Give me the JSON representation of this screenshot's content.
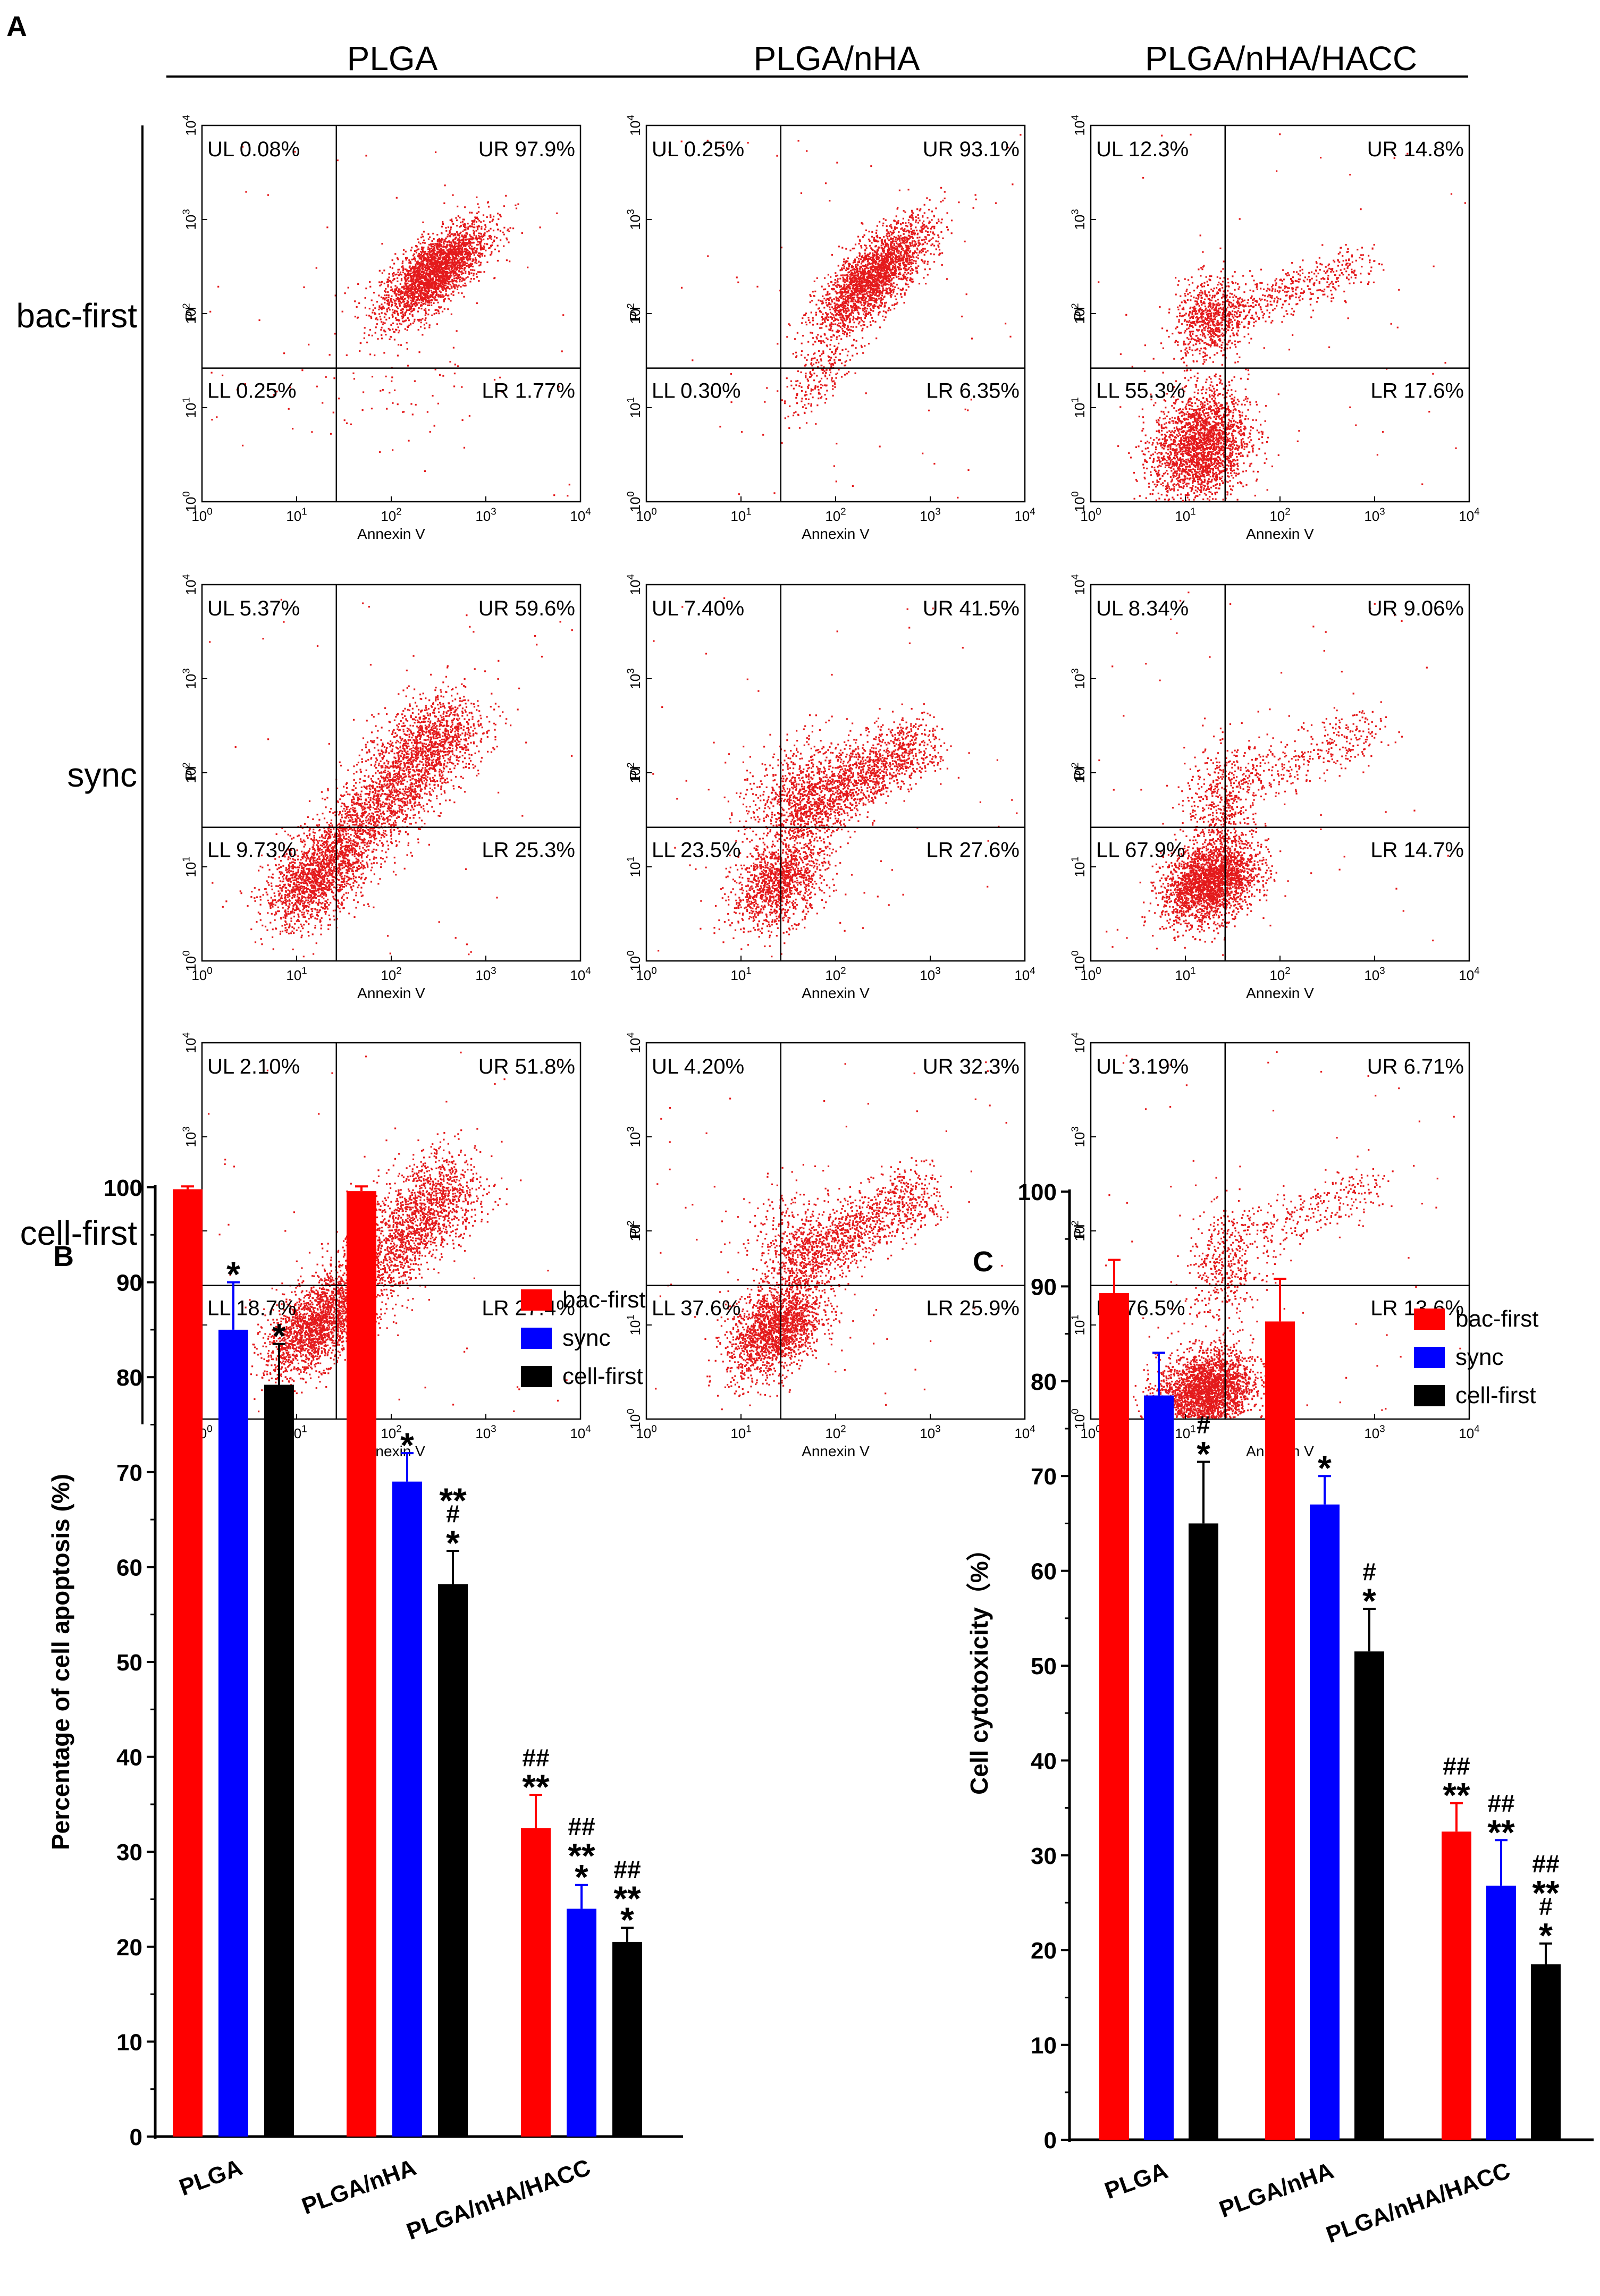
{
  "panel_labels": {
    "A": "A",
    "B": "B",
    "C": "C"
  },
  "colors": {
    "dot": "#e41a1c",
    "bac_first": "#ff0000",
    "sync": "#0000ff",
    "cell_first": "#000000",
    "axis": "#000000"
  },
  "flow": {
    "columns": [
      "PLGA",
      "PLGA/nHA",
      "PLGA/nHA/HACC"
    ],
    "rows": [
      "bac-first",
      "sync",
      "cell-first"
    ],
    "xlabel": "Annexin V",
    "ylabel": "PI",
    "exponents": [
      "0",
      "1",
      "2",
      "3",
      "4"
    ],
    "tick_base": "10",
    "quadrants": [
      [
        {
          "UL": "UL 0.08%",
          "UR": "UR 97.9%",
          "LL": "LL 0.25%",
          "LR": "LR 1.77%"
        },
        {
          "UL": "UL 0.25%",
          "UR": "UR 93.1%",
          "LL": "LL 0.30%",
          "LR": "LR 6.35%"
        },
        {
          "UL": "UL 12.3%",
          "UR": "UR 14.8%",
          "LL": "LL 55.3%",
          "LR": "LR 17.6%"
        }
      ],
      [
        {
          "UL": "UL 5.37%",
          "UR": "UR 59.6%",
          "LL": "LL 9.73%",
          "LR": "LR 25.3%"
        },
        {
          "UL": "UL 7.40%",
          "UR": "UR 41.5%",
          "LL": "LL 23.5%",
          "LR": "LR 27.6%"
        },
        {
          "UL": "UL 8.34%",
          "UR": "UR 9.06%",
          "LL": "LL 67.9%",
          "LR": "LR 14.7%"
        }
      ],
      [
        {
          "UL": "UL 2.10%",
          "UR": "UR 51.8%",
          "LL": "LL 18.7%",
          "LR": "LR 27.4%"
        },
        {
          "UL": "UL 4.20%",
          "UR": "UR 32.3%",
          "LL": "LL 37.6%",
          "LR": "LR 25.9%"
        },
        {
          "UL": "UL 3.19%",
          "UR": "UR 6.71%",
          "LL": "LL 76.5%",
          "LR": "LR 13.6%"
        }
      ]
    ],
    "populations": [
      [
        [
          {
            "x": 2.45,
            "y": 2.45,
            "sx": 0.28,
            "sy": 0.26,
            "r": 0.7,
            "n": 2600,
            "t": "g"
          },
          {
            "x": 2.0,
            "y": 1.2,
            "sx": 0.45,
            "sy": 0.35,
            "r": 0.2,
            "n": 60,
            "t": "g"
          }
        ],
        [
          {
            "x": 2.4,
            "y": 2.4,
            "sx": 0.3,
            "sy": 0.3,
            "r": 0.75,
            "n": 2400,
            "t": "g"
          },
          {
            "x": 1.85,
            "y": 1.35,
            "sx": 0.2,
            "sy": 0.22,
            "r": 0.7,
            "n": 220,
            "t": "g"
          }
        ],
        [
          {
            "x": 1.15,
            "y": 0.6,
            "sx": 0.25,
            "sy": 0.3,
            "r": 0.2,
            "n": 2300,
            "t": "g"
          },
          {
            "x": 1.25,
            "y": 1.95,
            "sx": 0.18,
            "sy": 0.22,
            "r": 0.1,
            "n": 700,
            "t": "g"
          },
          {
            "x0": 1.3,
            "y0": 1.95,
            "x1": 2.9,
            "y1": 2.55,
            "sd": 0.12,
            "n": 500,
            "t": "s"
          }
        ]
      ],
      [
        [
          {
            "x": 1.15,
            "y": 0.85,
            "sx": 0.25,
            "sy": 0.25,
            "r": 0.4,
            "n": 1300,
            "t": "g"
          },
          {
            "x0": 1.3,
            "y0": 1.0,
            "x1": 2.7,
            "y1": 2.55,
            "sd": 0.2,
            "n": 2200,
            "t": "s"
          },
          {
            "x": 2.3,
            "y": 2.3,
            "sx": 0.35,
            "sy": 0.3,
            "r": 0.5,
            "n": 600,
            "t": "g"
          }
        ],
        [
          {
            "x": 1.4,
            "y": 0.85,
            "sx": 0.25,
            "sy": 0.25,
            "r": 0.4,
            "n": 1300,
            "t": "g"
          },
          {
            "x0": 1.5,
            "y0": 1.55,
            "x1": 2.9,
            "y1": 2.35,
            "sd": 0.17,
            "n": 1600,
            "t": "s"
          },
          {
            "x": 1.55,
            "y": 1.75,
            "sx": 0.28,
            "sy": 0.35,
            "r": 0.2,
            "n": 500,
            "t": "g"
          }
        ],
        [
          {
            "x": 1.25,
            "y": 0.85,
            "sx": 0.25,
            "sy": 0.22,
            "r": 0.3,
            "n": 2400,
            "t": "g"
          },
          {
            "x": 1.4,
            "y": 1.7,
            "sx": 0.2,
            "sy": 0.3,
            "r": 0.1,
            "n": 500,
            "t": "g"
          },
          {
            "x0": 1.6,
            "y0": 1.9,
            "x1": 3.0,
            "y1": 2.5,
            "sd": 0.15,
            "n": 350,
            "t": "s"
          }
        ]
      ],
      [
        [
          {
            "x": 1.15,
            "y": 0.95,
            "sx": 0.25,
            "sy": 0.25,
            "r": 0.5,
            "n": 1600,
            "t": "g"
          },
          {
            "x0": 1.3,
            "y0": 1.1,
            "x1": 2.7,
            "y1": 2.5,
            "sd": 0.2,
            "n": 1800,
            "t": "s"
          },
          {
            "x": 2.3,
            "y": 2.3,
            "sx": 0.3,
            "sy": 0.3,
            "r": 0.4,
            "n": 500,
            "t": "g"
          }
        ],
        [
          {
            "x": 1.35,
            "y": 0.95,
            "sx": 0.25,
            "sy": 0.25,
            "r": 0.4,
            "n": 1800,
            "t": "g"
          },
          {
            "x0": 1.5,
            "y0": 1.6,
            "x1": 2.9,
            "y1": 2.45,
            "sd": 0.17,
            "n": 1200,
            "t": "s"
          },
          {
            "x": 1.55,
            "y": 1.8,
            "sx": 0.25,
            "sy": 0.35,
            "r": 0.1,
            "n": 400,
            "t": "g"
          }
        ],
        [
          {
            "x": 1.2,
            "y": 0.3,
            "sx": 0.25,
            "sy": 0.22,
            "r": 0.2,
            "n": 2600,
            "t": "g"
          },
          {
            "x": 1.4,
            "y": 1.6,
            "sx": 0.2,
            "sy": 0.3,
            "r": 0.1,
            "n": 400,
            "t": "g"
          },
          {
            "x0": 1.6,
            "y0": 1.9,
            "x1": 3.0,
            "y1": 2.5,
            "sd": 0.15,
            "n": 300,
            "t": "s"
          }
        ]
      ]
    ]
  },
  "chart_data": [
    {
      "type": "bar",
      "panel": "B",
      "categories": [
        "PLGA",
        "PLGA/nHA",
        "PLGA/nHA/HACC"
      ],
      "ylabel": "Percentage of cell apoptosis (%)",
      "xlabel": "",
      "ylim": [
        0,
        100
      ],
      "yticks": [
        0,
        10,
        20,
        30,
        40,
        50,
        60,
        70,
        80,
        90,
        100
      ],
      "legend_position": "top-right",
      "series": [
        {
          "name": "bac-first",
          "values": [
            99.8,
            99.6,
            32.5
          ],
          "errors": [
            0.3,
            0.5,
            3.5
          ],
          "marks": [
            "",
            "",
            "##\n**"
          ]
        },
        {
          "name": "sync",
          "values": [
            85.0,
            69.0,
            24.0
          ],
          "errors": [
            5.0,
            3.0,
            2.5
          ],
          "marks": [
            "*",
            "*",
            "##\n**\n*"
          ]
        },
        {
          "name": "cell-first",
          "values": [
            79.2,
            58.2,
            20.5
          ],
          "errors": [
            4.3,
            3.5,
            1.5
          ],
          "marks": [
            "*",
            "**\n#\n*",
            "##\n**\n*"
          ]
        }
      ]
    },
    {
      "type": "bar",
      "panel": "C",
      "categories": [
        "PLGA",
        "PLGA/nHA",
        "PLGA/nHA/HACC"
      ],
      "ylabel": "Cell cytotoxicity（%）",
      "xlabel": "",
      "ylim": [
        0,
        100
      ],
      "yticks": [
        0,
        10,
        20,
        30,
        40,
        50,
        60,
        70,
        80,
        90,
        100
      ],
      "legend_position": "top-right",
      "series": [
        {
          "name": "bac-first",
          "values": [
            89.3,
            86.3,
            32.5
          ],
          "errors": [
            3.5,
            4.5,
            3.0
          ],
          "marks": [
            "",
            "",
            "##\n**"
          ]
        },
        {
          "name": "sync",
          "values": [
            78.5,
            67.0,
            26.8
          ],
          "errors": [
            4.5,
            3.0,
            4.8
          ],
          "marks": [
            "",
            "*",
            "##\n**"
          ]
        },
        {
          "name": "cell-first",
          "values": [
            65.0,
            51.5,
            18.5
          ],
          "errors": [
            6.5,
            4.5,
            2.2
          ],
          "marks": [
            "#\n*",
            "#\n*",
            "##\n**\n#\n*"
          ]
        }
      ]
    }
  ]
}
